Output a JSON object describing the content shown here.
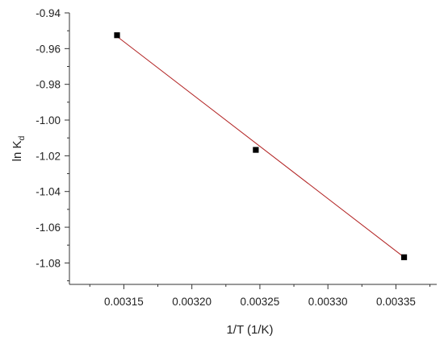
{
  "chart_data": {
    "type": "scatter",
    "xlabel": "1/T (1/K)",
    "ylabel": {
      "base": "ln K",
      "subscript": "d"
    },
    "xlim": [
      0.00311,
      0.00338
    ],
    "ylim": [
      -1.092,
      -0.94
    ],
    "xticks": [
      {
        "value": 0.00315,
        "label": "0.00315"
      },
      {
        "value": 0.0032,
        "label": "0.00320"
      },
      {
        "value": 0.00325,
        "label": "0.00325"
      },
      {
        "value": 0.0033,
        "label": "0.00330"
      },
      {
        "value": 0.00335,
        "label": "0.00335"
      }
    ],
    "yticks": [
      {
        "value": -0.94,
        "label": "-0.94"
      },
      {
        "value": -0.96,
        "label": "-0.96"
      },
      {
        "value": -0.98,
        "label": "-0.98"
      },
      {
        "value": -1.0,
        "label": "-1.00"
      },
      {
        "value": -1.02,
        "label": "-1.02"
      },
      {
        "value": -1.04,
        "label": "-1.04"
      },
      {
        "value": -1.06,
        "label": "-1.06"
      },
      {
        "value": -1.08,
        "label": "-1.08"
      }
    ],
    "series": [
      {
        "points": [
          {
            "x": 0.003145,
            "y": -0.9525
          },
          {
            "x": 0.003247,
            "y": -1.0167
          },
          {
            "x": 0.003356,
            "y": -1.0768
          }
        ],
        "marker": "square",
        "color": "#000000"
      }
    ],
    "fit_line": {
      "x": [
        0.003145,
        0.003356
      ],
      "y": [
        -0.9532,
        -1.0768
      ],
      "color": "#b22222"
    },
    "grid": false,
    "legend": "none"
  }
}
